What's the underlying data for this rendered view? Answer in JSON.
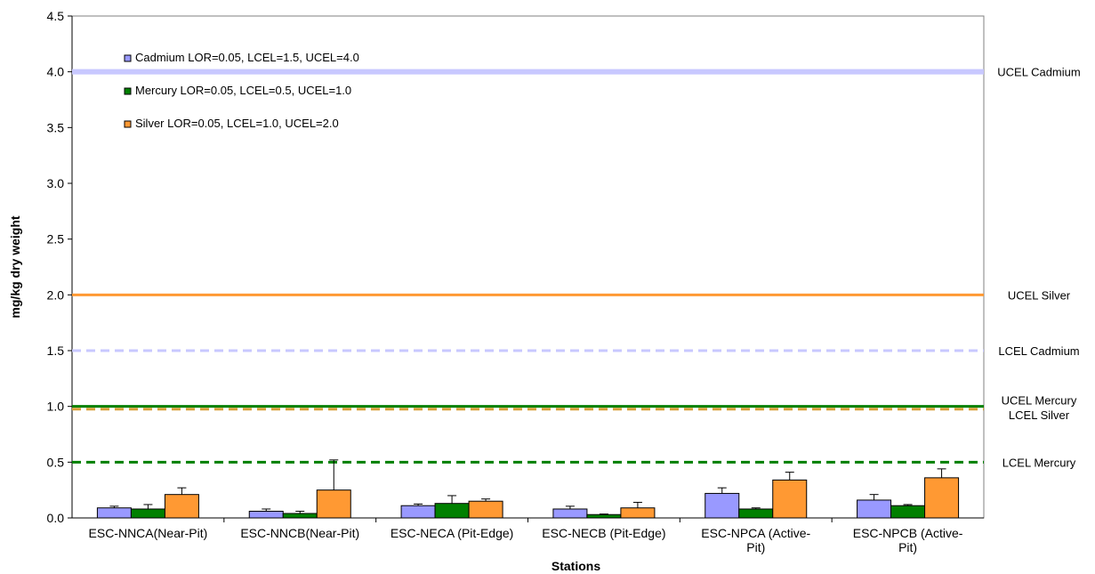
{
  "chart_data": {
    "type": "bar",
    "title": "",
    "xlabel": "Stations",
    "ylabel": "mg/kg dry weight",
    "ylim": [
      0,
      4.5
    ],
    "yticks": [
      "0.0",
      "0.5",
      "1.0",
      "1.5",
      "2.0",
      "2.5",
      "3.0",
      "3.5",
      "4.0",
      "4.5"
    ],
    "categories": [
      [
        "ESC-NNCA(Near-Pit)"
      ],
      [
        "ESC-NNCB(Near-Pit)"
      ],
      [
        "ESC-NECA (Pit-Edge)"
      ],
      [
        "ESC-NECB (Pit-Edge)"
      ],
      [
        "ESC-NPCA (Active-",
        "Pit)"
      ],
      [
        "ESC-NPCB (Active-",
        "Pit)"
      ]
    ],
    "series": [
      {
        "name": "Cadmium LOR=0.05, LCEL=1.5, UCEL=4.0",
        "color": "#9999ff",
        "values": [
          0.09,
          0.06,
          0.11,
          0.08,
          0.22,
          0.16
        ],
        "error": [
          0.015,
          0.02,
          0.015,
          0.025,
          0.05,
          0.05
        ]
      },
      {
        "name": "Mercury LOR=0.05, LCEL=0.5, UCEL=1.0",
        "color": "#008000",
        "values": [
          0.08,
          0.04,
          0.13,
          0.03,
          0.08,
          0.11
        ],
        "error": [
          0.04,
          0.02,
          0.07,
          0.005,
          0.01,
          0.01
        ]
      },
      {
        "name": "Silver LOR=0.05, LCEL=1.0, UCEL=2.0",
        "color": "#ff9933",
        "values": [
          0.21,
          0.25,
          0.15,
          0.09,
          0.34,
          0.36
        ],
        "error": [
          0.06,
          0.27,
          0.02,
          0.05,
          0.07,
          0.08
        ]
      }
    ],
    "reference_lines": [
      {
        "label": "UCEL Cadmium",
        "value": 4.0,
        "color": "#c8c8ff",
        "style": "solid"
      },
      {
        "label": "UCEL Silver",
        "value": 2.0,
        "color": "#ff9933",
        "style": "solid"
      },
      {
        "label": "LCEL Cadmium",
        "value": 1.5,
        "color": "#c8c8ff",
        "style": "dashed"
      },
      {
        "label": "UCEL Mercury",
        "value": 1.0,
        "color": "#008000",
        "style": "solid"
      },
      {
        "label": "LCEL Silver",
        "value": 0.975,
        "color": "#d9a03a",
        "style": "dashed"
      },
      {
        "label": "LCEL Mercury",
        "value": 0.5,
        "color": "#008000",
        "style": "dashed"
      }
    ],
    "legend_position": "top-left",
    "grid": false
  }
}
